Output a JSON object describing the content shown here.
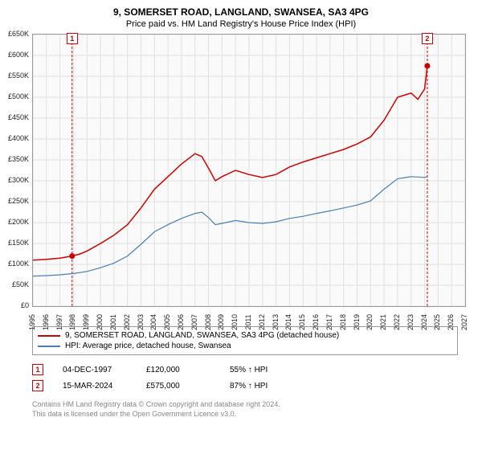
{
  "title": "9, SOMERSET ROAD, LANGLAND, SWANSEA, SA3 4PG",
  "subtitle": "Price paid vs. HM Land Registry's House Price Index (HPI)",
  "chart": {
    "type": "line",
    "background_color": "#fafafa",
    "grid_color": "#e0e0e0",
    "border_color": "#999999",
    "ylim_min": 0,
    "ylim_max": 650000,
    "ytick_step": 50000,
    "yticks": [
      "£0",
      "£50K",
      "£100K",
      "£150K",
      "£200K",
      "£250K",
      "£300K",
      "£350K",
      "£400K",
      "£450K",
      "£500K",
      "£550K",
      "£600K",
      "£650K"
    ],
    "xmin": 1995,
    "xmax": 2027,
    "xticks": [
      1995,
      1996,
      1997,
      1998,
      1999,
      2000,
      2001,
      2002,
      2003,
      2004,
      2005,
      2006,
      2007,
      2008,
      2009,
      2010,
      2011,
      2012,
      2013,
      2014,
      2015,
      2016,
      2017,
      2018,
      2019,
      2020,
      2021,
      2022,
      2023,
      2024,
      2025,
      2026,
      2027
    ],
    "label_fontsize": 9,
    "series": [
      {
        "id": "price_paid",
        "label": "9, SOMERSET ROAD, LANGLAND, SWANSEA, SA3 4PG (detached house)",
        "color": "#cc0000",
        "line_width": 1.5,
        "data": [
          [
            1995.0,
            110000
          ],
          [
            1996.0,
            112000
          ],
          [
            1997.0,
            115000
          ],
          [
            1997.9,
            120000
          ],
          [
            1998.5,
            125000
          ],
          [
            1999.0,
            132000
          ],
          [
            2000.0,
            150000
          ],
          [
            2001.0,
            170000
          ],
          [
            2002.0,
            195000
          ],
          [
            2003.0,
            235000
          ],
          [
            2004.0,
            280000
          ],
          [
            2005.0,
            310000
          ],
          [
            2006.0,
            340000
          ],
          [
            2007.0,
            365000
          ],
          [
            2007.5,
            358000
          ],
          [
            2008.0,
            330000
          ],
          [
            2008.5,
            300000
          ],
          [
            2009.0,
            310000
          ],
          [
            2010.0,
            325000
          ],
          [
            2011.0,
            315000
          ],
          [
            2012.0,
            308000
          ],
          [
            2013.0,
            315000
          ],
          [
            2014.0,
            333000
          ],
          [
            2015.0,
            345000
          ],
          [
            2016.0,
            355000
          ],
          [
            2017.0,
            365000
          ],
          [
            2018.0,
            375000
          ],
          [
            2019.0,
            388000
          ],
          [
            2020.0,
            405000
          ],
          [
            2021.0,
            445000
          ],
          [
            2022.0,
            500000
          ],
          [
            2023.0,
            510000
          ],
          [
            2023.5,
            495000
          ],
          [
            2024.0,
            520000
          ],
          [
            2024.2,
            575000
          ]
        ]
      },
      {
        "id": "hpi",
        "label": "HPI: Average price, detached house, Swansea",
        "color": "#4a7fb0",
        "line_width": 1.2,
        "data": [
          [
            1995.0,
            72000
          ],
          [
            1996.0,
            73000
          ],
          [
            1997.0,
            75000
          ],
          [
            1998.0,
            78000
          ],
          [
            1999.0,
            83000
          ],
          [
            2000.0,
            92000
          ],
          [
            2001.0,
            103000
          ],
          [
            2002.0,
            120000
          ],
          [
            2003.0,
            148000
          ],
          [
            2004.0,
            178000
          ],
          [
            2005.0,
            195000
          ],
          [
            2006.0,
            210000
          ],
          [
            2007.0,
            222000
          ],
          [
            2007.5,
            225000
          ],
          [
            2008.0,
            212000
          ],
          [
            2008.5,
            195000
          ],
          [
            2009.0,
            198000
          ],
          [
            2010.0,
            205000
          ],
          [
            2011.0,
            200000
          ],
          [
            2012.0,
            198000
          ],
          [
            2013.0,
            202000
          ],
          [
            2014.0,
            210000
          ],
          [
            2015.0,
            215000
          ],
          [
            2016.0,
            222000
          ],
          [
            2017.0,
            228000
          ],
          [
            2018.0,
            235000
          ],
          [
            2019.0,
            242000
          ],
          [
            2020.0,
            252000
          ],
          [
            2021.0,
            280000
          ],
          [
            2022.0,
            305000
          ],
          [
            2023.0,
            310000
          ],
          [
            2024.0,
            308000
          ],
          [
            2024.2,
            310000
          ]
        ]
      }
    ],
    "event_markers": [
      {
        "n": "1",
        "x": 1997.9,
        "y": 120000,
        "line_color": "#cc0000"
      },
      {
        "n": "2",
        "x": 2024.2,
        "y": 575000,
        "line_color": "#cc0000"
      }
    ]
  },
  "legend": {
    "rows": [
      {
        "color": "#cc0000",
        "label": "9, SOMERSET ROAD, LANGLAND, SWANSEA, SA3 4PG (detached house)"
      },
      {
        "color": "#4a7fb0",
        "label": "HPI: Average price, detached house, Swansea"
      }
    ]
  },
  "events": {
    "rows": [
      {
        "n": "1",
        "date": "04-DEC-1997",
        "price": "£120,000",
        "pct": "55%",
        "arrow": "↑",
        "vs": "HPI"
      },
      {
        "n": "2",
        "date": "15-MAR-2024",
        "price": "£575,000",
        "pct": "87%",
        "arrow": "↑",
        "vs": "HPI"
      }
    ]
  },
  "footer": {
    "line1": "Contains HM Land Registry data © Crown copyright and database right 2024.",
    "line2": "This data is licensed under the Open Government Licence v3.0."
  }
}
